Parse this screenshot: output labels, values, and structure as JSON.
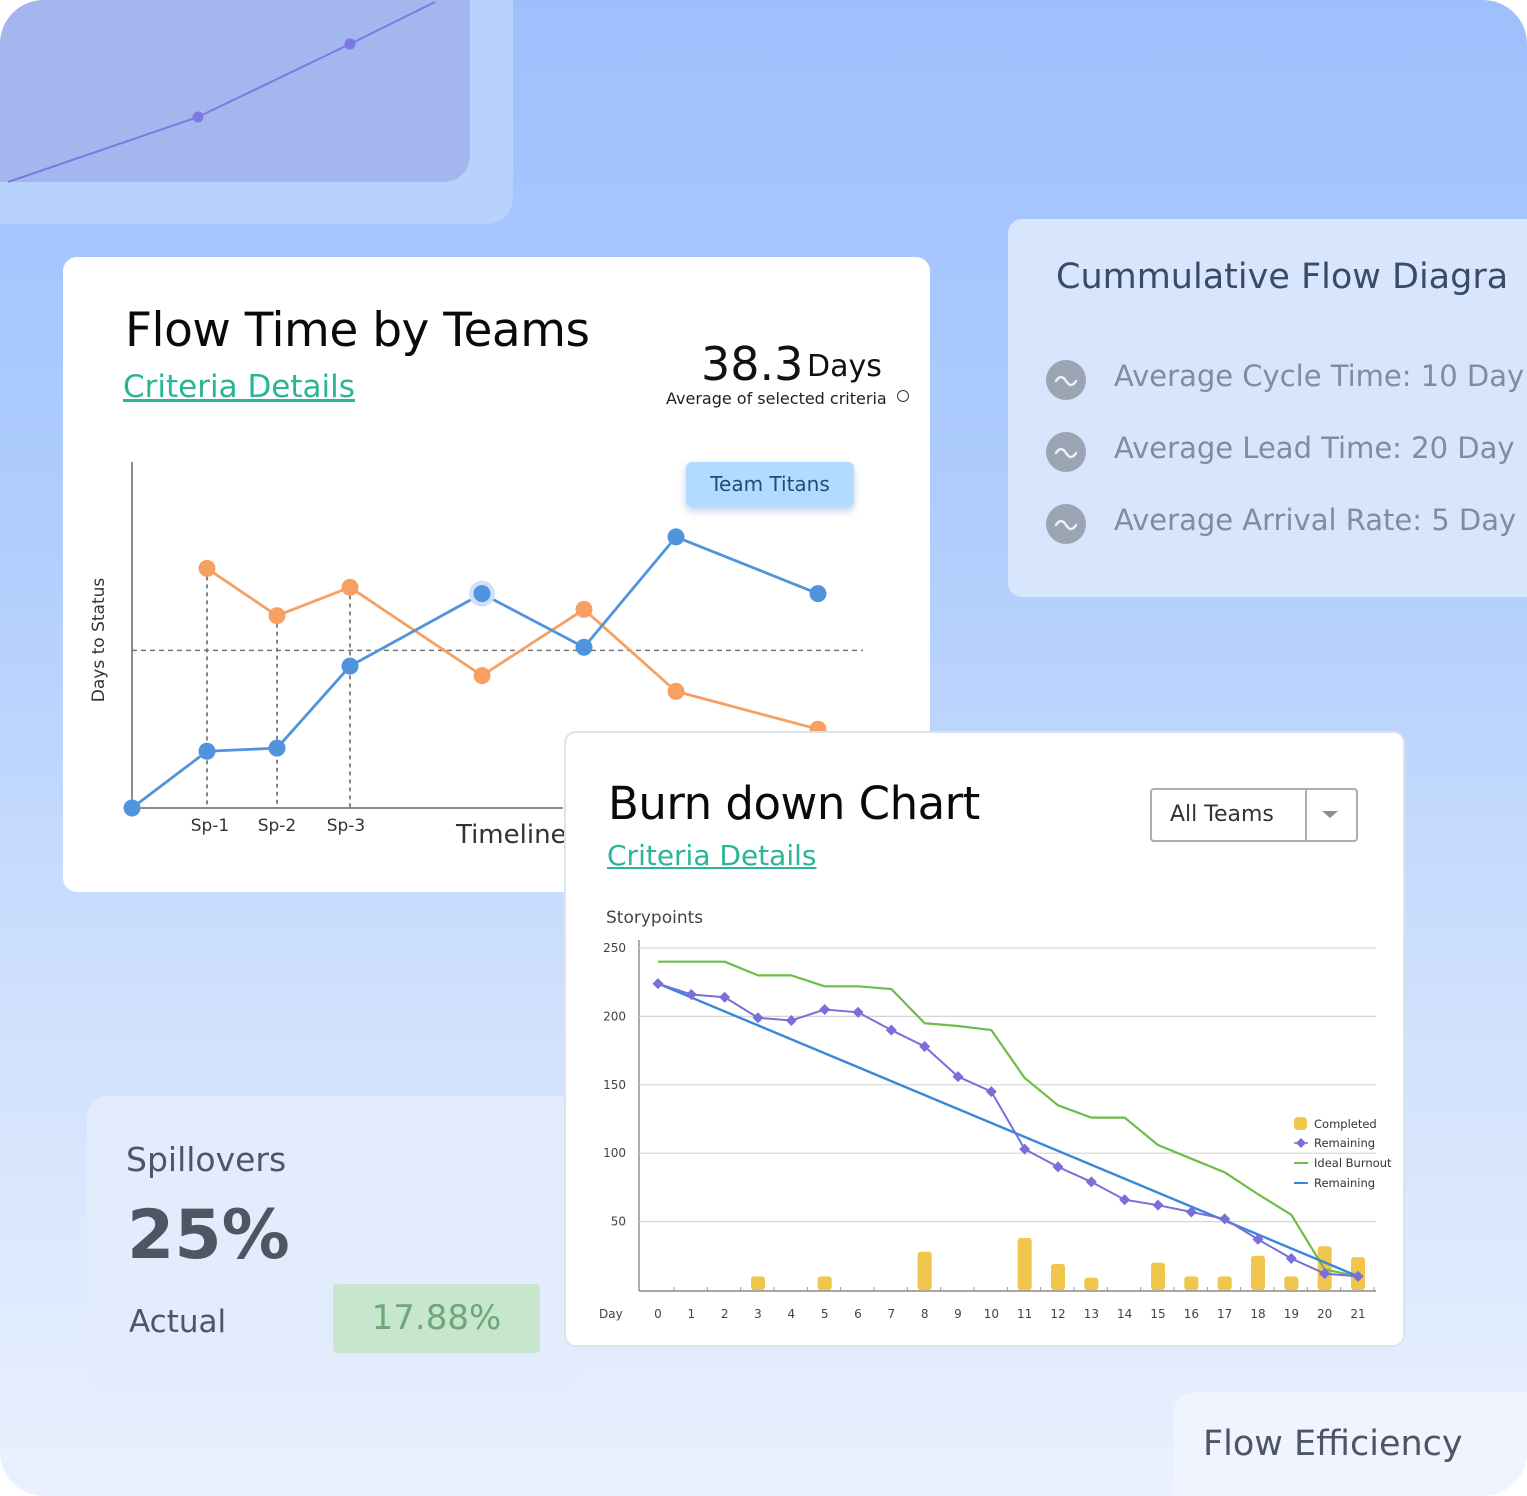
{
  "flow_time": {
    "title": "Flow Time by Teams",
    "criteria_link": "Criteria Details",
    "metric_value": "38.3",
    "metric_unit": "Days",
    "metric_caption": "Average of selected criteria",
    "badge": "Team Titans",
    "y_axis_label": "Days to Status",
    "x_axis_label": "Timeline",
    "x_ticks": [
      "Sp-1",
      "Sp-2",
      "Sp-3"
    ]
  },
  "cumulative_flow": {
    "title": "Cummulative Flow Diagra",
    "items": [
      {
        "label": "Average Cycle Time: 10 Day",
        "icon": "wave-icon"
      },
      {
        "label": "Average Lead Time: 20 Day",
        "icon": "wave-icon"
      },
      {
        "label": "Average Arrival Rate: 5 Day",
        "icon": "wave-icon"
      }
    ]
  },
  "spillovers": {
    "title": "Spillovers",
    "value": "25%",
    "actual_label": "Actual",
    "actual_value": "17.88%"
  },
  "flow_efficiency": {
    "title": "Flow Efficiency"
  },
  "burn_down": {
    "title": "Burn down Chart",
    "criteria_link": "Criteria Details",
    "team_select": "All Teams",
    "y_axis_title": "Storypoints",
    "x_axis_title": "Day"
  },
  "colors": {
    "teal_link": "#2bb597",
    "blue_series": "#4f94dc",
    "orange_series": "#f7a062",
    "green_line": "#6cbd48",
    "purple_line": "#7a6ed8",
    "ideal_line": "#3a86db",
    "bar_color": "#f0c64c"
  },
  "chart_data": [
    {
      "type": "line",
      "xlabel": "Timeline",
      "ylabel": "Days to Status",
      "categories": [
        "",
        "Sp-1",
        "Sp-2",
        "Sp-3",
        "",
        "",
        "",
        ""
      ],
      "series": [
        {
          "name": "Team Titans",
          "values": [
            0,
            18,
            19,
            45,
            68,
            51,
            86,
            68
          ]
        },
        {
          "name": "",
          "values": [
            null,
            76,
            61,
            70,
            42,
            63,
            37,
            25
          ]
        }
      ],
      "reference_line": 50,
      "ylim": [
        0,
        105
      ]
    },
    {
      "type": "bar",
      "title": "",
      "xlabel": "Day",
      "ylabel": "Storypoints",
      "ylim": [
        0,
        250
      ],
      "y_ticks": [
        50,
        100,
        150,
        200,
        250
      ],
      "categories": [
        "0",
        "1",
        "2",
        "3",
        "4",
        "5",
        "6",
        "7",
        "8",
        "9",
        "10",
        "11",
        "12",
        "13",
        "14",
        "15",
        "16",
        "17",
        "18",
        "19",
        "20",
        "21"
      ],
      "series": [
        {
          "name": "Completed",
          "values": [
            0,
            0,
            0,
            10,
            0,
            10,
            0,
            0,
            28,
            0,
            0,
            38,
            19,
            9,
            0,
            20,
            10,
            10,
            25,
            10,
            32,
            24
          ]
        },
        {
          "name": "Remaining",
          "values": [
            224,
            216,
            214,
            199,
            197,
            205,
            203,
            190,
            178,
            156,
            145,
            103,
            90,
            79,
            66,
            62,
            57,
            52,
            37,
            23,
            12,
            10
          ]
        },
        {
          "name": "Ideal Burnout",
          "values": [
            240,
            240,
            240,
            230,
            230,
            222,
            222,
            220,
            195,
            193,
            190,
            155,
            135,
            126,
            126,
            106,
            96,
            86,
            70,
            55,
            15,
            10
          ]
        },
        {
          "name": "Remaining",
          "values": [
            224,
            213.5,
            203,
            192.5,
            182,
            171.5,
            161,
            150.5,
            140,
            129.5,
            119,
            108.5,
            98,
            87.5,
            77,
            66.5,
            56,
            45.5,
            35,
            24.5,
            14,
            10
          ]
        }
      ],
      "legend_position": "right"
    }
  ]
}
